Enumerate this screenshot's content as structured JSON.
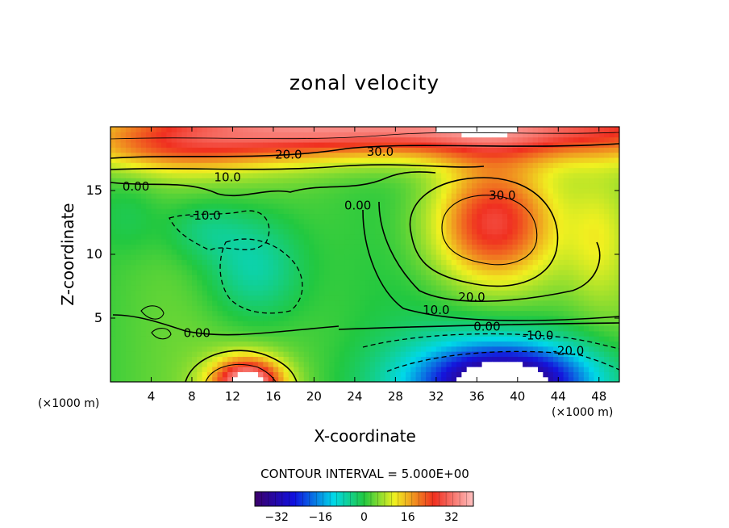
{
  "title": "zonal velocity",
  "contour_note": "CONTOUR INTERVAL = 5.000E+00",
  "chart_data": {
    "type": "heatmap",
    "title": "zonal velocity",
    "xlabel": "X-coordinate",
    "ylabel": "Z-coordinate",
    "x_unit": "(×1000 m)",
    "z_unit": "(×1000 m)",
    "xlim": [
      0,
      50
    ],
    "ylim": [
      0,
      20
    ],
    "x_ticks": [
      4,
      8,
      12,
      16,
      20,
      24,
      28,
      32,
      36,
      40,
      44,
      48
    ],
    "y_ticks": [
      5,
      10,
      15
    ],
    "contour_interval": 5.0,
    "contour_labels": [
      {
        "text": "20.0",
        "x": 17.5,
        "z": 17.8
      },
      {
        "text": "30.0",
        "x": 26.5,
        "z": 18.0
      },
      {
        "text": "10.0",
        "x": 11.5,
        "z": 16.0
      },
      {
        "text": "0.00",
        "x": 2.5,
        "z": 15.3
      },
      {
        "text": "-10.0",
        "x": 9.3,
        "z": 13.0
      },
      {
        "text": "0.00",
        "x": 24.3,
        "z": 13.8
      },
      {
        "text": "30.0",
        "x": 38.5,
        "z": 14.6
      },
      {
        "text": "20.0",
        "x": 35.5,
        "z": 6.6
      },
      {
        "text": "10.0",
        "x": 32.0,
        "z": 5.6
      },
      {
        "text": "0.00",
        "x": 37.0,
        "z": 4.3
      },
      {
        "text": "-10.0",
        "x": 42.0,
        "z": 3.6
      },
      {
        "text": "-20.0",
        "x": 45.0,
        "z": 2.4
      },
      {
        "text": "0.00",
        "x": 8.5,
        "z": 3.8
      }
    ],
    "colorbar": {
      "ticks": [
        -32,
        -16,
        0,
        16,
        32
      ],
      "range": [
        -40,
        40
      ]
    },
    "colors": {
      "min": "#3c006a",
      "zero": "#22c840",
      "max": "#e02020",
      "high": "#ffb0b0"
    }
  }
}
